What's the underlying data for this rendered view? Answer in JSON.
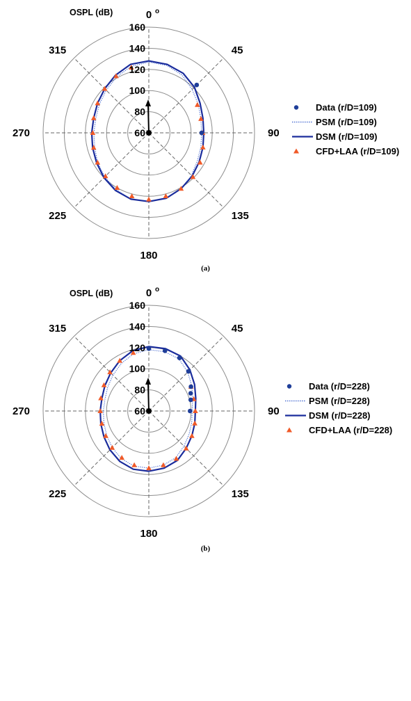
{
  "chart_data": [
    {
      "type": "polar",
      "panel_label": "(a)",
      "radial_axis": {
        "label": "OSPL (dB)",
        "range": [
          60,
          160
        ],
        "ticks": [
          60,
          80,
          100,
          120,
          140,
          160
        ],
        "tick_labels": [
          "60",
          "80",
          "100",
          "120",
          "140",
          "160"
        ]
      },
      "angular_axis": {
        "ticks": [
          0,
          45,
          90,
          135,
          180,
          225,
          270,
          315
        ],
        "tick_labels": [
          "0",
          "45",
          "90",
          "135",
          "180",
          "225",
          "270",
          "315"
        ],
        "zero_label_suffix": "o"
      },
      "legend_placement": "right",
      "series": [
        {
          "name": "Data (r/D=109)",
          "style": "marker-circle",
          "color": "#1f3e99",
          "points": [
            [
              45,
              124
            ],
            [
              90,
              110
            ]
          ]
        },
        {
          "name": "PSM (r/D=109)",
          "style": "dotted-line",
          "color": "#3a5fcd",
          "points": [
            [
              0,
              127
            ],
            [
              15,
              126
            ],
            [
              30,
              123
            ],
            [
              45,
              118
            ],
            [
              60,
              114
            ],
            [
              75,
              111
            ],
            [
              90,
              110
            ],
            [
              105,
              111
            ],
            [
              120,
              113
            ],
            [
              135,
              117
            ],
            [
              150,
              121
            ],
            [
              165,
              124
            ],
            [
              180,
              125
            ],
            [
              195,
              125
            ],
            [
              210,
              122
            ],
            [
              225,
              119
            ],
            [
              240,
              116
            ],
            [
              255,
              113
            ],
            [
              270,
              112
            ],
            [
              285,
              112
            ],
            [
              300,
              114
            ],
            [
              315,
              117
            ],
            [
              330,
              121
            ],
            [
              345,
              125
            ]
          ]
        },
        {
          "name": "DSM (r/D=109)",
          "style": "solid-line",
          "color": "#1a2c9c",
          "points": [
            [
              0,
              128
            ],
            [
              15,
              127
            ],
            [
              30,
              125
            ],
            [
              45,
              121
            ],
            [
              60,
              116
            ],
            [
              75,
              113
            ],
            [
              90,
              112
            ],
            [
              105,
              113
            ],
            [
              120,
              115
            ],
            [
              135,
              118
            ],
            [
              150,
              121
            ],
            [
              165,
              124
            ],
            [
              180,
              125
            ],
            [
              195,
              125
            ],
            [
              210,
              123
            ],
            [
              225,
              120
            ],
            [
              240,
              117
            ],
            [
              255,
              115
            ],
            [
              270,
              114
            ],
            [
              285,
              114
            ],
            [
              300,
              116
            ],
            [
              315,
              119
            ],
            [
              330,
              123
            ],
            [
              345,
              127
            ]
          ]
        },
        {
          "name": "CFD+LAA (r/D=109)",
          "style": "marker-triangle",
          "color": "#f05a28",
          "points": [
            [
              345,
              124
            ],
            [
              330,
              122
            ],
            [
              315,
              119
            ],
            [
              300,
              116
            ],
            [
              285,
              114
            ],
            [
              270,
              113
            ],
            [
              255,
              114
            ],
            [
              240,
              116
            ],
            [
              225,
              118
            ],
            [
              210,
              120
            ],
            [
              195,
              122
            ],
            [
              180,
              123
            ],
            [
              165,
              122
            ],
            [
              150,
              121
            ],
            [
              135,
              119
            ],
            [
              120,
              116
            ],
            [
              105,
              113
            ],
            [
              90,
              111
            ],
            [
              75,
              111
            ],
            [
              60,
              113
            ]
          ]
        }
      ]
    },
    {
      "type": "polar",
      "panel_label": "(b)",
      "radial_axis": {
        "label": "OSPL (dB)",
        "range": [
          60,
          160
        ],
        "ticks": [
          60,
          80,
          100,
          120,
          140,
          160
        ],
        "tick_labels": [
          "60",
          "80",
          "100",
          "120",
          "140",
          "160"
        ]
      },
      "angular_axis": {
        "ticks": [
          0,
          45,
          90,
          135,
          180,
          225,
          270,
          315
        ],
        "tick_labels": [
          "0",
          "45",
          "90",
          "135",
          "180",
          "225",
          "270",
          "315"
        ],
        "zero_label_suffix": "o"
      },
      "legend_placement": "right",
      "series": [
        {
          "name": "Data (r/D=228)",
          "style": "marker-circle",
          "color": "#1f3e99",
          "points": [
            [
              0,
              119
            ],
            [
              15,
              119
            ],
            [
              30,
              118
            ],
            [
              45,
              113
            ],
            [
              60,
              106
            ],
            [
              67,
              103
            ],
            [
              75,
              101
            ],
            [
              90,
              99
            ]
          ]
        },
        {
          "name": "PSM (r/D=228)",
          "style": "dotted-line",
          "color": "#3a5fcd",
          "points": [
            [
              0,
              118
            ],
            [
              15,
              118
            ],
            [
              30,
              117
            ],
            [
              45,
              112
            ],
            [
              60,
              107
            ],
            [
              75,
              103
            ],
            [
              90,
              101
            ],
            [
              105,
              102
            ],
            [
              120,
              104
            ],
            [
              135,
              107
            ],
            [
              150,
              111
            ],
            [
              165,
              113
            ],
            [
              180,
              114
            ],
            [
              195,
              114
            ],
            [
              210,
              112
            ],
            [
              225,
              109
            ],
            [
              240,
              106
            ],
            [
              255,
              104
            ],
            [
              270,
              103
            ],
            [
              285,
              103
            ],
            [
              300,
              105
            ],
            [
              315,
              108
            ],
            [
              330,
              112
            ],
            [
              345,
              116
            ]
          ]
        },
        {
          "name": "DSM (r/D=228)",
          "style": "solid-line",
          "color": "#1a2c9c",
          "points": [
            [
              0,
              121
            ],
            [
              15,
              121
            ],
            [
              30,
              120
            ],
            [
              45,
              115
            ],
            [
              60,
              110
            ],
            [
              75,
              106
            ],
            [
              90,
              104
            ],
            [
              105,
              105
            ],
            [
              120,
              107
            ],
            [
              135,
              110
            ],
            [
              150,
              114
            ],
            [
              165,
              116
            ],
            [
              180,
              117
            ],
            [
              195,
              117
            ],
            [
              210,
              115
            ],
            [
              225,
              112
            ],
            [
              240,
              109
            ],
            [
              255,
              107
            ],
            [
              270,
              106
            ],
            [
              285,
              106
            ],
            [
              300,
              108
            ],
            [
              315,
              111
            ],
            [
              330,
              115
            ],
            [
              345,
              119
            ]
          ]
        },
        {
          "name": "CFD+LAA (r/D=228)",
          "style": "marker-triangle",
          "color": "#f05a28",
          "points": [
            [
              345,
              117
            ],
            [
              330,
              115
            ],
            [
              315,
              112
            ],
            [
              300,
              109
            ],
            [
              285,
              107
            ],
            [
              270,
              106
            ],
            [
              255,
              106
            ],
            [
              240,
              107
            ],
            [
              225,
              109
            ],
            [
              210,
              111
            ],
            [
              195,
              113
            ],
            [
              180,
              114
            ],
            [
              165,
              113
            ],
            [
              150,
              112
            ],
            [
              135,
              110
            ],
            [
              120,
              107
            ],
            [
              105,
              105
            ],
            [
              90,
              104
            ],
            [
              75,
              104
            ],
            [
              60,
              106
            ]
          ]
        }
      ]
    }
  ]
}
